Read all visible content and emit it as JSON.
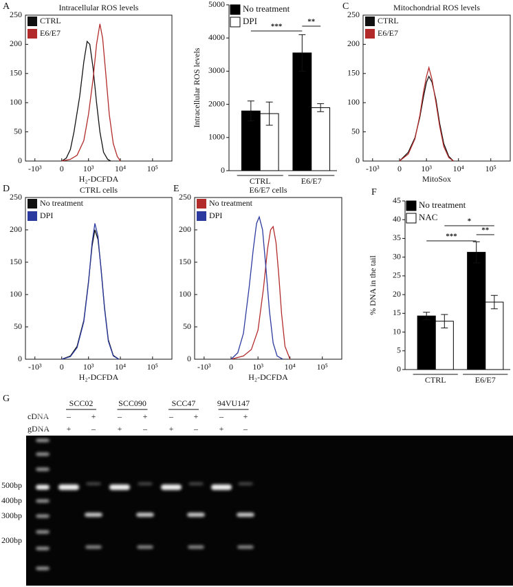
{
  "chart_data": [
    {
      "type": "line",
      "panel": "A",
      "title": "Intracellular ROS levels",
      "xlabel": "H₂-DCFDA",
      "xscale": "asinh",
      "xlim": [
        -2000,
        400000
      ],
      "ylim": [
        0,
        250
      ],
      "yticks": [
        0,
        50,
        100,
        150,
        200,
        250
      ],
      "xticks": [
        {
          "value": -1000,
          "label": "-10³"
        },
        0,
        {
          "value": 1000,
          "label": "10³"
        },
        {
          "value": 10000,
          "label": "10⁴"
        },
        {
          "value": 100000,
          "label": "10⁵"
        }
      ],
      "series": [
        {
          "name": "CTRL",
          "color": "#111111",
          "x": [
            0,
            100,
            200,
            300,
            500,
            700,
            900,
            1100,
            1400,
            1800,
            2300,
            3000,
            4000,
            5000
          ],
          "values": [
            0,
            5,
            20,
            50,
            110,
            170,
            205,
            200,
            160,
            100,
            50,
            15,
            3,
            0
          ]
        },
        {
          "name": "E6/E7",
          "color": "#b22a2a",
          "x": [
            0,
            200,
            400,
            700,
            1000,
            1400,
            1800,
            2300,
            2800,
            3500,
            4500,
            6000,
            8000,
            10000
          ],
          "values": [
            0,
            3,
            10,
            35,
            80,
            140,
            200,
            235,
            210,
            150,
            80,
            30,
            8,
            0
          ]
        }
      ]
    },
    {
      "type": "bar",
      "panel": "B",
      "ylabel": "Intracellular ROS levels",
      "categories": [
        "CTRL",
        "E6/E7"
      ],
      "ylim": [
        0,
        5000
      ],
      "yticks": [
        0,
        1000,
        2000,
        3000,
        4000,
        5000
      ],
      "series": [
        {
          "name": "No treatment",
          "color": "#000000",
          "values": [
            1800,
            3550
          ],
          "errors": [
            300,
            550
          ]
        },
        {
          "name": "DPI",
          "color": "#ffffff",
          "values": [
            1720,
            1900
          ],
          "errors": [
            350,
            120
          ]
        }
      ],
      "annotations": [
        "***",
        "**"
      ]
    },
    {
      "type": "line",
      "panel": "C",
      "title": "Mitochondrial ROS levels",
      "xlabel": "MitoSox",
      "xscale": "asinh",
      "xlim": [
        -2000,
        400000
      ],
      "ylim": [
        0,
        250
      ],
      "yticks": [
        0,
        50,
        100,
        150,
        200,
        250
      ],
      "xticks": [
        {
          "value": -1000,
          "label": "-10³"
        },
        0,
        {
          "value": 1000,
          "label": "10³"
        },
        {
          "value": 10000,
          "label": "10⁴"
        },
        {
          "value": 100000,
          "label": "10⁵"
        }
      ],
      "series": [
        {
          "name": "CTRL",
          "color": "#111111",
          "x": [
            0,
            200,
            400,
            600,
            800,
            1000,
            1200,
            1500,
            2000,
            2600,
            3500,
            5000,
            7000
          ],
          "values": [
            0,
            15,
            40,
            75,
            110,
            135,
            145,
            135,
            105,
            65,
            30,
            8,
            0
          ]
        },
        {
          "name": "E6/E7",
          "color": "#b22a2a",
          "x": [
            0,
            200,
            400,
            600,
            800,
            1000,
            1200,
            1500,
            2000,
            2600,
            3500,
            5000,
            7000
          ],
          "values": [
            0,
            12,
            38,
            78,
            118,
            145,
            160,
            140,
            100,
            60,
            25,
            6,
            0
          ]
        }
      ]
    },
    {
      "type": "line",
      "panel": "D",
      "title": "CTRL cells",
      "xlabel": "H₂-DCFDA",
      "xscale": "asinh",
      "xlim": [
        -2000,
        400000
      ],
      "ylim": [
        0,
        250
      ],
      "yticks": [
        0,
        50,
        100,
        150,
        200,
        250
      ],
      "xticks": [
        {
          "value": -1000,
          "label": "-10³"
        },
        0,
        {
          "value": 1000,
          "label": "10³"
        },
        {
          "value": 10000,
          "label": "10⁴"
        },
        {
          "value": 100000,
          "label": "10⁵"
        }
      ],
      "series": [
        {
          "name": "No treatment",
          "color": "#111111",
          "x": [
            0,
            200,
            400,
            700,
            1000,
            1300,
            1600,
            2000,
            2500,
            3200,
            4200,
            6000,
            9000
          ],
          "values": [
            0,
            5,
            20,
            60,
            120,
            175,
            200,
            185,
            140,
            80,
            30,
            6,
            0
          ]
        },
        {
          "name": "DPI",
          "color": "#2b3a9e",
          "x": [
            0,
            200,
            400,
            700,
            1000,
            1300,
            1600,
            2000,
            2500,
            3200,
            4200,
            6000,
            9000
          ],
          "values": [
            0,
            4,
            18,
            58,
            118,
            180,
            210,
            190,
            138,
            78,
            28,
            5,
            0
          ]
        }
      ]
    },
    {
      "type": "line",
      "panel": "E",
      "title": "E6/E7 cells",
      "xlabel": "H₂-DCFDA",
      "xscale": "asinh",
      "xlim": [
        -2000,
        400000
      ],
      "ylim": [
        0,
        250
      ],
      "yticks": [
        0,
        50,
        100,
        150,
        200,
        250
      ],
      "xticks": [
        {
          "value": -1000,
          "label": "-10³"
        },
        0,
        {
          "value": 1000,
          "label": "10³"
        },
        {
          "value": 10000,
          "label": "10⁴"
        },
        {
          "value": 100000,
          "label": "10⁵"
        }
      ],
      "series": [
        {
          "name": "No treatment",
          "color": "#b22a2a",
          "x": [
            0,
            300,
            600,
            1000,
            1500,
            2000,
            2500,
            3000,
            3700,
            4500,
            5500,
            7000,
            10000
          ],
          "values": [
            0,
            5,
            15,
            45,
            110,
            170,
            200,
            205,
            180,
            130,
            70,
            20,
            0
          ]
        },
        {
          "name": "DPI",
          "color": "#2b3a9e",
          "x": [
            0,
            150,
            300,
            500,
            700,
            900,
            1100,
            1400,
            1800,
            2300,
            3000,
            4000,
            6000
          ],
          "values": [
            0,
            10,
            40,
            110,
            170,
            210,
            220,
            200,
            140,
            75,
            25,
            5,
            0
          ]
        }
      ]
    },
    {
      "type": "bar",
      "panel": "F",
      "ylabel": "% DNA in the tail",
      "categories": [
        "CTRL",
        "E6/E7"
      ],
      "ylim": [
        0,
        45
      ],
      "yticks": [
        0,
        5,
        10,
        15,
        20,
        25,
        30,
        35,
        40,
        45
      ],
      "series": [
        {
          "name": "No treatment",
          "color": "#000000",
          "values": [
            14.3,
            31.3
          ],
          "errors": [
            1,
            2.8
          ]
        },
        {
          "name": "NAC",
          "color": "#ffffff",
          "values": [
            12.9,
            18.0
          ],
          "errors": [
            1.8,
            1.8
          ]
        }
      ],
      "annotations": [
        "***",
        "*",
        "**"
      ]
    }
  ],
  "gel": {
    "panel": "G",
    "samples": [
      "SCC02",
      "SCC090",
      "SCC47",
      "94VU147"
    ],
    "rows": [
      {
        "label": "cDNA",
        "signs": [
          "–",
          "+",
          "–",
          "+",
          "–",
          "+",
          "–",
          "+"
        ]
      },
      {
        "label": "gDNA",
        "signs": [
          "+",
          "–",
          "+",
          "–",
          "+",
          "–",
          "+",
          "–"
        ]
      }
    ],
    "markers": [
      "500bp",
      "400bp",
      "300bp",
      "200bp"
    ]
  }
}
